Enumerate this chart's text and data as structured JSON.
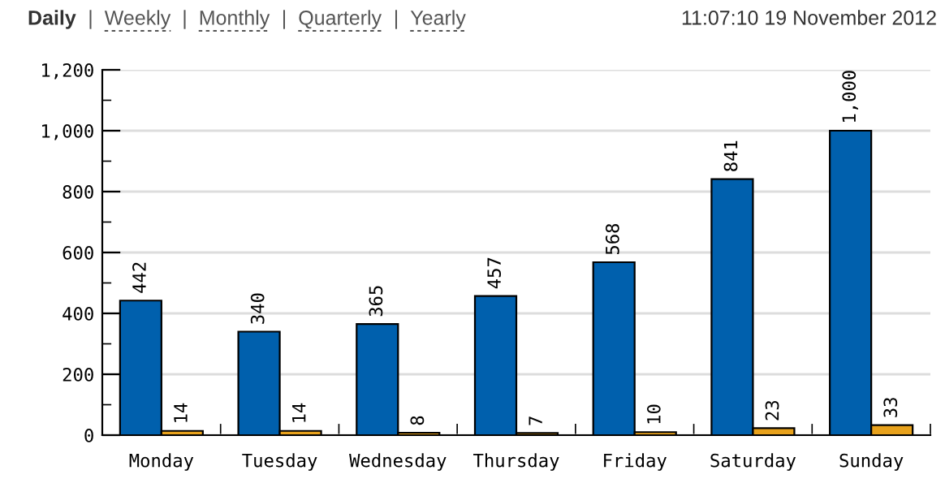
{
  "chart_data": {
    "type": "bar",
    "categories": [
      "Monday",
      "Tuesday",
      "Wednesday",
      "Thursday",
      "Friday",
      "Saturday",
      "Sunday"
    ],
    "series": [
      {
        "color": "#0060ad",
        "values": [
          442,
          340,
          365,
          457,
          568,
          841,
          1000
        ],
        "value_labels": [
          "442",
          "340",
          "365",
          "457",
          "568",
          "841",
          "1,000"
        ]
      },
      {
        "color": "#e8a21c",
        "values": [
          14,
          14,
          8,
          7,
          10,
          23,
          33
        ],
        "value_labels": [
          "14",
          "14",
          "8",
          "7",
          "10",
          "23",
          "33"
        ]
      }
    ],
    "ylim": [
      0,
      1200
    ],
    "yticks": [
      {
        "value": 0,
        "label": "0"
      },
      {
        "value": 100,
        "label": null
      },
      {
        "value": 200,
        "label": "200"
      },
      {
        "value": 300,
        "label": null
      },
      {
        "value": 400,
        "label": "400"
      },
      {
        "value": 500,
        "label": null
      },
      {
        "value": 600,
        "label": "600"
      },
      {
        "value": 700,
        "label": null
      },
      {
        "value": 800,
        "label": "800"
      },
      {
        "value": 900,
        "label": null
      },
      {
        "value": 1000,
        "label": "1,000"
      },
      {
        "value": 1100,
        "label": null
      },
      {
        "value": 1200,
        "label": "1,200"
      }
    ],
    "grid": "y",
    "annotations": [
      "Daily",
      "|",
      "Weekly",
      "|",
      "Monthly",
      "|",
      "Quarterly",
      "|",
      "Yearly",
      "11:07:10 19 November 2012"
    ]
  }
}
